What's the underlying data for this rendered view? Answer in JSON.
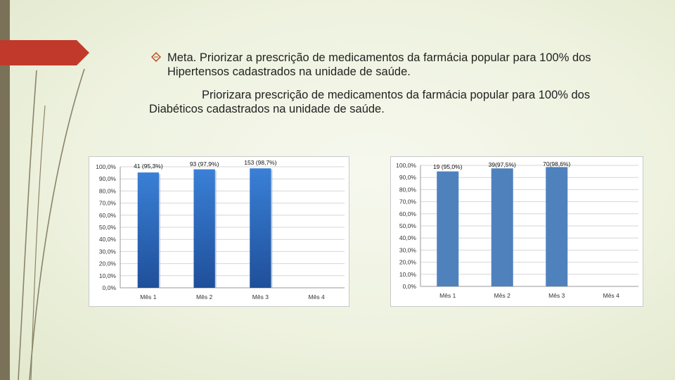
{
  "slide": {
    "bullet_text_line1": "Meta. Priorizar a prescrição de medicamentos da farmácia popular para 100% dos",
    "bullet_text_line2": "Hipertensos cadastrados na unidade de saúde.",
    "para_line1": "Priorizara prescrição de medicamentos da farmácia popular para 100% dos",
    "para_line2": "Diabéticos cadastrados na unidade de saúde.",
    "colors": {
      "accent_red": "#c0392b",
      "left_bar": "#7a7258"
    }
  },
  "chart_data": [
    {
      "type": "bar",
      "categories": [
        "Mês 1",
        "Mês 2",
        "Mês 3",
        "Mês 4"
      ],
      "values": [
        95.3,
        97.9,
        98.7,
        null
      ],
      "data_labels": [
        "41 (95,3%)",
        "93 (97,9%)",
        "153 (98,7%)",
        ""
      ],
      "yticks": [
        "0,0%",
        "10,0%",
        "20,0%",
        "30,0%",
        "40,0%",
        "50,0%",
        "60,0%",
        "70,0%",
        "80,0%",
        "90,0%",
        "100,0%"
      ],
      "ylim": [
        0,
        100
      ],
      "grid": true,
      "bar_color": "#2e6fc4"
    },
    {
      "type": "bar",
      "categories": [
        "Mês 1",
        "Mês 2",
        "Mês 3",
        "Mês 4"
      ],
      "values": [
        95.0,
        97.5,
        98.6,
        null
      ],
      "data_labels": [
        "19 (95,0%)",
        "39(97,5%)",
        "70(98,6%)",
        ""
      ],
      "yticks": [
        "0,0%",
        "10,0%",
        "20,0%",
        "30,0%",
        "40,0%",
        "50,0%",
        "60,0%",
        "70,0%",
        "80,0%",
        "90,0%",
        "100,0%"
      ],
      "ylim": [
        0,
        100
      ],
      "grid": true,
      "bar_color": "#4f81bd"
    }
  ]
}
